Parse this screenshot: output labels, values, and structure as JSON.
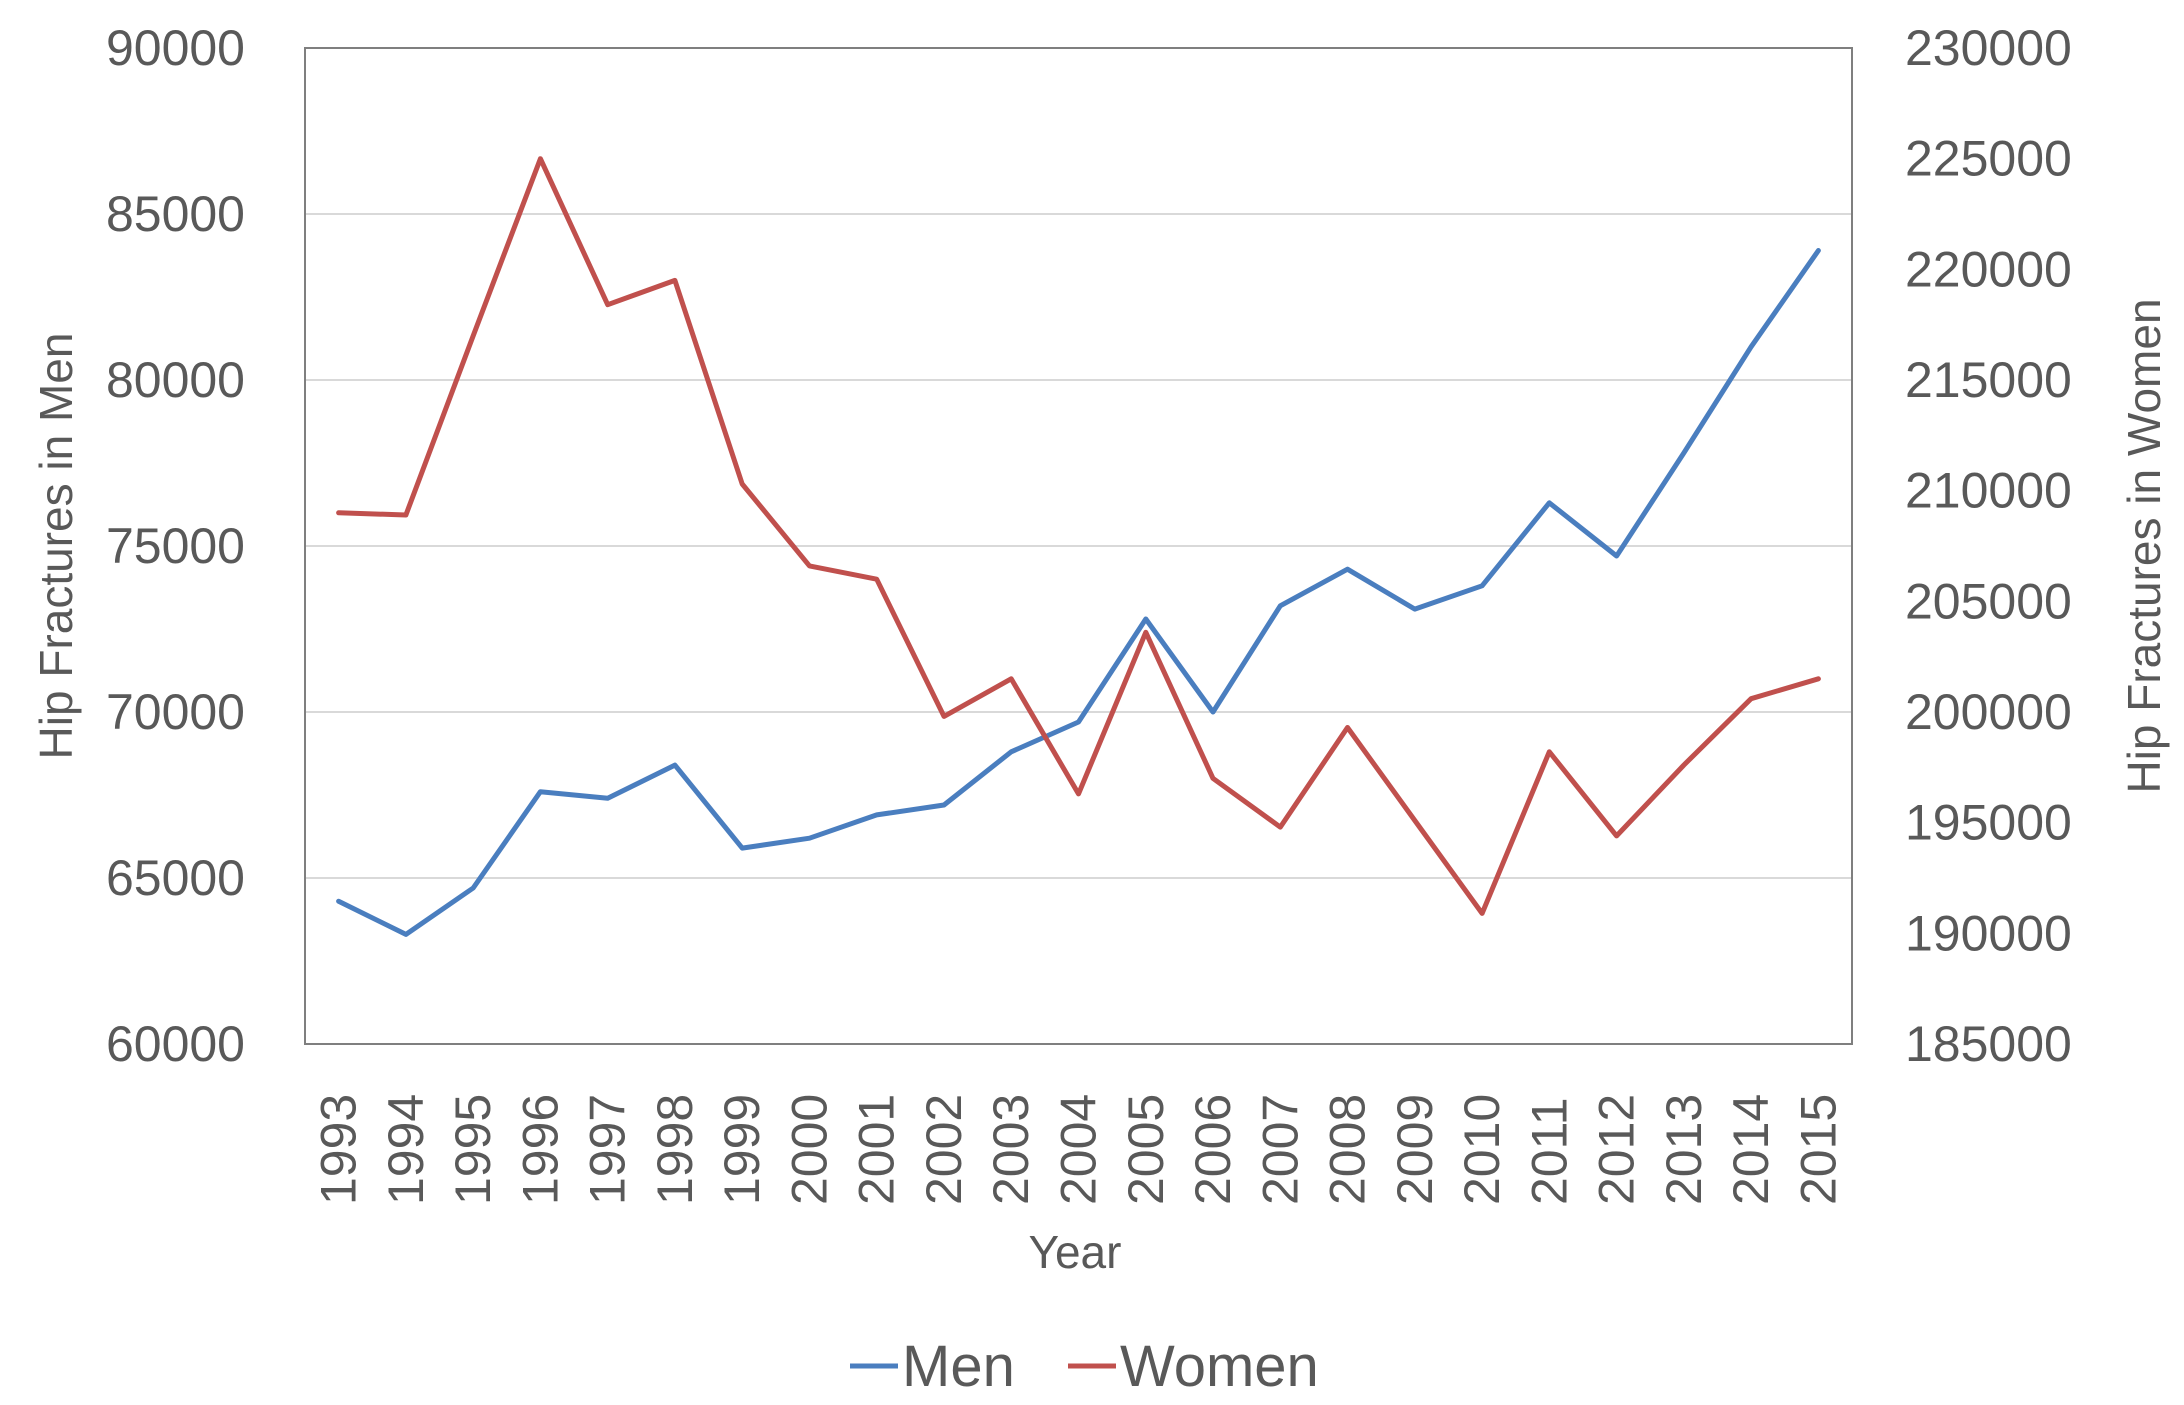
{
  "chart_data": {
    "type": "line",
    "title": "",
    "xlabel": "Year",
    "ylabel": "Hip Fractures in Men",
    "y2label": "Hip Fractures in Women",
    "ylim": [
      60000,
      90000
    ],
    "y2lim": [
      185000,
      230000
    ],
    "yticks": [
      "60000",
      "65000",
      "70000",
      "75000",
      "80000",
      "85000",
      "90000"
    ],
    "y2ticks": [
      "185000",
      "190000",
      "195000",
      "200000",
      "205000",
      "210000",
      "215000",
      "220000",
      "225000",
      "230000"
    ],
    "categories": [
      "1993",
      "1994",
      "1995",
      "1996",
      "1997",
      "1998",
      "1999",
      "2000",
      "2001",
      "2002",
      "2003",
      "2004",
      "2005",
      "2006",
      "2007",
      "2008",
      "2009",
      "2010",
      "2011",
      "2012",
      "2013",
      "2014",
      "2015"
    ],
    "grid": true,
    "legend_position": "bottom",
    "series": [
      {
        "name": "Men",
        "axis": "left",
        "color": "#4a7ebf",
        "values": [
          64300,
          63300,
          64700,
          67600,
          67400,
          68400,
          65900,
          66200,
          66900,
          67200,
          68800,
          69700,
          72800,
          70000,
          73200,
          74300,
          73100,
          73800,
          76300,
          74700,
          77800,
          81000,
          83900
        ]
      },
      {
        "name": "Women",
        "axis": "right",
        "color": "#c0504d",
        "values": [
          209000,
          208900,
          217000,
          225000,
          218400,
          219500,
          210300,
          206600,
          206000,
          199800,
          201500,
          196300,
          203600,
          197000,
          194800,
          199300,
          195100,
          190900,
          198200,
          194400,
          197600,
          200600,
          201500
        ]
      }
    ]
  }
}
